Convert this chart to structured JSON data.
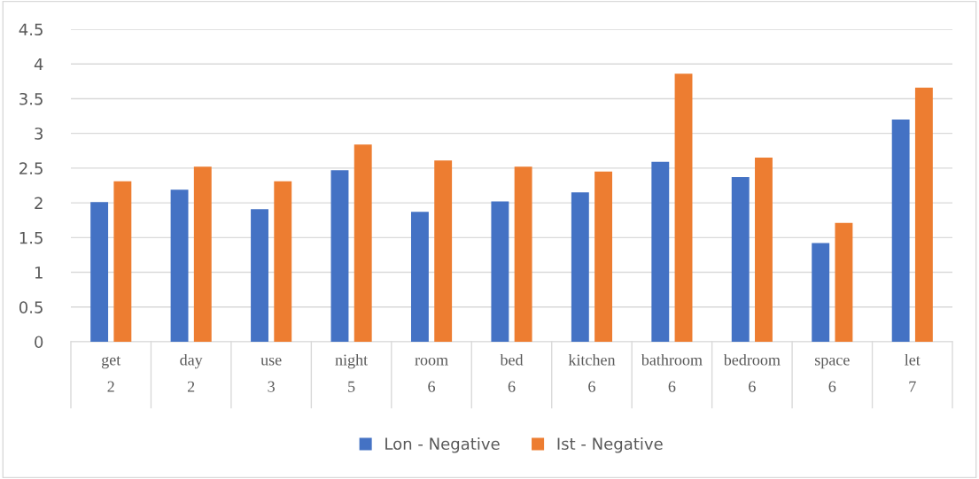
{
  "chart_data": {
    "type": "bar",
    "categories": [
      "get\n2",
      "day\n2",
      "use\n3",
      "night\n5",
      "room\n6",
      "bed\n6",
      "kitchen\n6",
      "bathroom\n6",
      "bedroom\n6",
      "space\n6",
      "let\n7"
    ],
    "series": [
      {
        "name": "Lon - Negative",
        "color": "#4472c4",
        "values": [
          2.01,
          2.19,
          1.91,
          2.47,
          1.87,
          2.02,
          2.15,
          2.59,
          2.37,
          1.42,
          3.2
        ]
      },
      {
        "name": "Ist - Negative",
        "color": "#ed7d31",
        "values": [
          2.31,
          2.52,
          2.31,
          2.84,
          2.61,
          2.52,
          2.45,
          3.86,
          2.65,
          1.71,
          3.66
        ]
      }
    ],
    "ylim": [
      0,
      4.5
    ],
    "yticks": [
      0,
      0.5,
      1,
      1.5,
      2,
      2.5,
      3,
      3.5,
      4,
      4.5
    ],
    "grid": "y",
    "legend": "bottom"
  }
}
